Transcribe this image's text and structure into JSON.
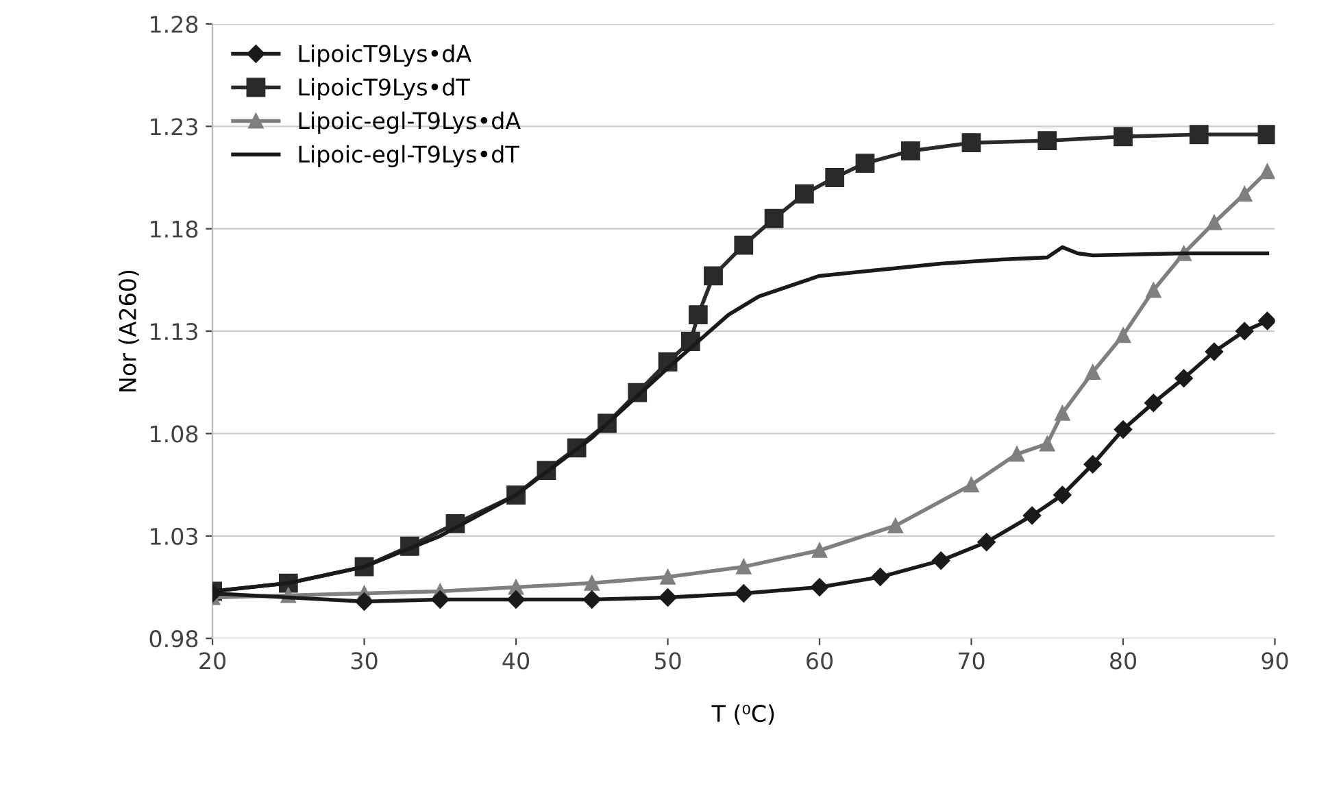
{
  "chart_data": {
    "type": "line",
    "xlabel": "T (⁰C)",
    "ylabel": "Nor (A260)",
    "xlim": [
      20,
      90
    ],
    "xticks": [
      20,
      30,
      40,
      50,
      60,
      70,
      80,
      90
    ],
    "ylim": [
      0.98,
      1.28
    ],
    "yticks": [
      0.98,
      1.03,
      1.08,
      1.13,
      1.18,
      1.23,
      1.28
    ],
    "grid": "y",
    "legend": "top left",
    "series": [
      {
        "name": "LipoicT9Lys•dA",
        "color": "#1a1a1a",
        "marker": "diamond",
        "x": [
          20,
          30,
          35,
          40,
          45,
          50,
          55,
          60,
          64,
          68,
          71,
          74,
          76,
          78,
          80,
          82,
          84,
          86,
          88,
          89.5
        ],
        "values": [
          1.002,
          0.998,
          0.999,
          0.999,
          0.999,
          1.0,
          1.002,
          1.005,
          1.01,
          1.018,
          1.027,
          1.04,
          1.05,
          1.065,
          1.082,
          1.095,
          1.107,
          1.12,
          1.13,
          1.135
        ]
      },
      {
        "name": "LipoicT9Lys•dT",
        "color": "#2a2a2a",
        "marker": "square",
        "x": [
          20,
          25,
          30,
          33,
          36,
          40,
          42,
          44,
          46,
          48,
          50,
          51.5,
          52,
          53,
          55,
          57,
          59,
          61,
          63,
          66,
          70,
          75,
          80,
          85,
          89.5
        ],
        "values": [
          1.003,
          1.007,
          1.015,
          1.025,
          1.036,
          1.05,
          1.062,
          1.073,
          1.085,
          1.1,
          1.115,
          1.125,
          1.138,
          1.157,
          1.172,
          1.185,
          1.197,
          1.205,
          1.212,
          1.218,
          1.222,
          1.223,
          1.225,
          1.226,
          1.226
        ]
      },
      {
        "name": "Lipoic-egl-T9Lys•dA",
        "color": "#7f7f7f",
        "marker": "triangle",
        "x": [
          20,
          25,
          30,
          35,
          40,
          45,
          50,
          55,
          60,
          65,
          70,
          73,
          75,
          76,
          78,
          80,
          82,
          84,
          86,
          88,
          89.5
        ],
        "values": [
          1.0,
          1.001,
          1.002,
          1.003,
          1.005,
          1.007,
          1.01,
          1.015,
          1.023,
          1.035,
          1.055,
          1.07,
          1.075,
          1.09,
          1.11,
          1.128,
          1.15,
          1.168,
          1.183,
          1.197,
          1.208
        ]
      },
      {
        "name": "Lipoic-egl-T9Lys•dT",
        "color": "#1a1a1a",
        "marker": "none",
        "x": [
          20,
          25,
          30,
          35,
          40,
          45,
          50,
          52,
          54,
          56,
          58,
          60,
          64,
          68,
          72,
          75,
          76,
          77,
          78,
          84,
          89.5
        ],
        "values": [
          1.003,
          1.007,
          1.015,
          1.03,
          1.05,
          1.078,
          1.112,
          1.125,
          1.138,
          1.147,
          1.152,
          1.157,
          1.16,
          1.163,
          1.165,
          1.166,
          1.171,
          1.168,
          1.167,
          1.168,
          1.168
        ]
      }
    ]
  }
}
